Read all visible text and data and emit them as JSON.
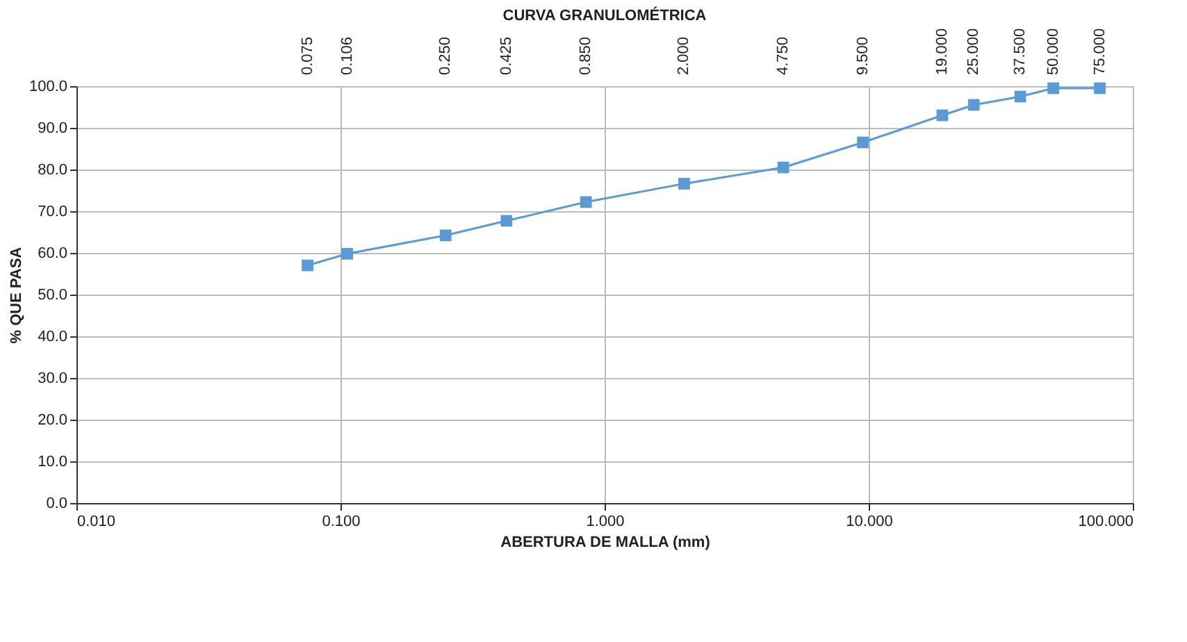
{
  "chart_data": {
    "type": "line",
    "title": "CURVA GRANULOMÉTRICA",
    "xlabel": "ABERTURA DE MALLA (mm)",
    "ylabel": "% QUE PASA",
    "log": "x",
    "grid": true,
    "legend": false,
    "marker": "square",
    "line_style": "solid",
    "x": [
      0.075,
      0.106,
      0.25,
      0.425,
      0.85,
      2.0,
      4.75,
      9.5,
      19.0,
      25.0,
      37.5,
      50.0,
      75.0
    ],
    "series": [
      {
        "color": "#5b9bd5",
        "values": [
          57.0,
          59.8,
          64.2,
          67.7,
          72.2,
          76.6,
          80.5,
          86.5,
          93.0,
          95.5,
          97.5,
          99.5,
          99.5
        ]
      }
    ],
    "xlim": [
      0.01,
      100
    ],
    "xticks": [
      {
        "value": 0.01,
        "label": "0.010"
      },
      {
        "value": 0.1,
        "label": "0.100"
      },
      {
        "value": 1,
        "label": "1.000"
      },
      {
        "value": 10,
        "label": "10.000"
      },
      {
        "value": 100,
        "label": "100.000"
      }
    ],
    "annotations": [
      "0.075",
      "0.106",
      "0.250",
      "0.425",
      "0.850",
      "2.000",
      "4.750",
      "9.500",
      "19.000",
      "25.000",
      "37.500",
      "50.000",
      "75.000"
    ],
    "ylim": [
      0,
      100
    ],
    "yticks": [
      {
        "value": 0,
        "label": "0.0"
      },
      {
        "value": 10,
        "label": "10.0"
      },
      {
        "value": 20,
        "label": "20.0"
      },
      {
        "value": 30,
        "label": "30.0"
      },
      {
        "value": 40,
        "label": "40.0"
      },
      {
        "value": 50,
        "label": "50.0"
      },
      {
        "value": 60,
        "label": "60.0"
      },
      {
        "value": 70,
        "label": "70.0"
      },
      {
        "value": 80,
        "label": "80.0"
      },
      {
        "value": 90,
        "label": "90.0"
      },
      {
        "value": 100,
        "label": "100.0"
      }
    ]
  }
}
